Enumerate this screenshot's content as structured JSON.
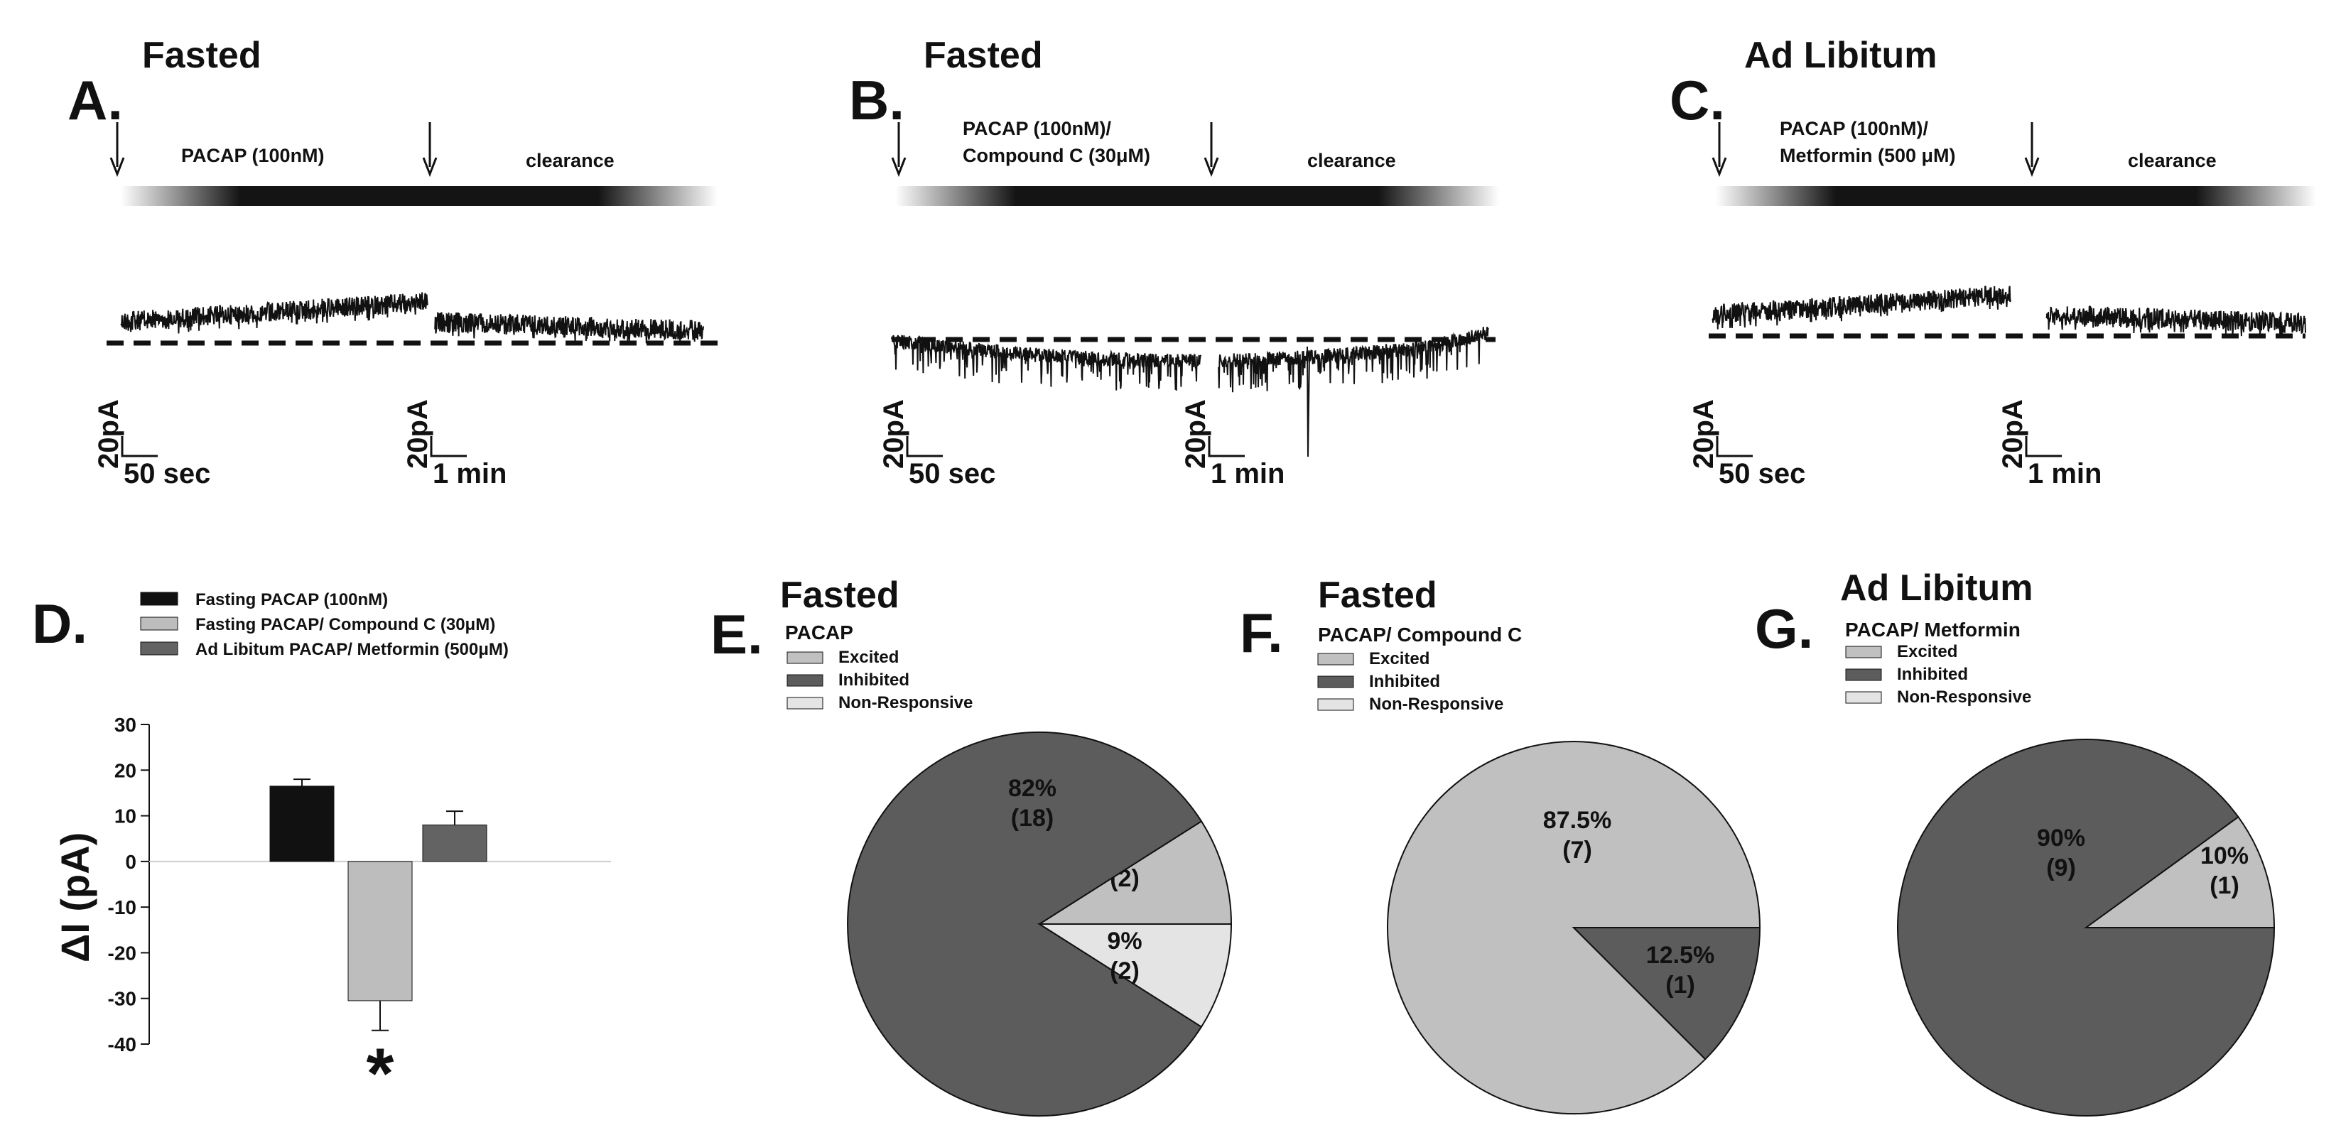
{
  "panels_top": [
    {
      "id": "A",
      "letter": "A.",
      "title": "Fasted",
      "drug_lines": [
        "PACAP (100nM)"
      ],
      "clearance": "clearance",
      "trace": {
        "baseline": "flat",
        "step_at_wash": true,
        "scale": {
          "left": {
            "y": "20pA",
            "x": "50 sec"
          },
          "right": {
            "y": "20pA",
            "x": "1 min"
          }
        }
      }
    },
    {
      "id": "B",
      "letter": "B.",
      "title": "Fasted",
      "drug_lines": [
        "PACAP (100nM)/",
        "Compound C (30μM)"
      ],
      "clearance": "clearance",
      "trace": {
        "baseline": "downward",
        "scale": {
          "left": {
            "y": "20pA",
            "x": "50 sec"
          },
          "right": {
            "y": "20pA",
            "x": "1 min"
          }
        }
      }
    },
    {
      "id": "C",
      "letter": "C.",
      "title": "Ad Libitum",
      "drug_lines": [
        "PACAP (100nM)/",
        "Metformin  (500 μM)"
      ],
      "clearance": "clearance",
      "trace": {
        "baseline": "flat",
        "step_at_wash": true,
        "scale": {
          "left": {
            "y": "20pA",
            "x": "50 sec"
          },
          "right": {
            "y": "20pA",
            "x": "1 min"
          }
        }
      }
    }
  ],
  "chart_data": [
    {
      "panel": "D",
      "type": "bar",
      "letter": "D.",
      "legend": [
        "Fasting PACAP (100nM)",
        "Fasting PACAP/ Compound C (30μM)",
        "Ad Libitum PACAP/ Metformin (500μM)"
      ],
      "ylabel": "ΔI (pA)",
      "ylim": [
        -40,
        30
      ],
      "yticks": [
        30,
        20,
        10,
        0,
        -10,
        -20,
        -30,
        -40
      ],
      "series": [
        {
          "name": "Fasting PACAP (100nM)",
          "value": 16.5,
          "error": 1.5,
          "color": "#111111"
        },
        {
          "name": "Fasting PACAP/ Compound C (30μM)",
          "value": -30.5,
          "error": 6.5,
          "color": "#bdbdbd",
          "significance": "*"
        },
        {
          "name": "Ad Libitum PACAP/ Metformin (500μM)",
          "value": 8,
          "error": 3,
          "color": "#636363"
        }
      ]
    },
    {
      "panel": "E",
      "type": "pie",
      "letter": "E.",
      "title": "Fasted",
      "subtitle": "PACAP",
      "legend": [
        "Excited",
        "Inhibited",
        "Non-Responsive"
      ],
      "slices": [
        {
          "category": "Excited",
          "percent": 9,
          "count": 2,
          "color": "#c0c0c0",
          "label": "9%",
          "count_label": "(2)"
        },
        {
          "category": "Inhibited",
          "percent": 82,
          "count": 18,
          "color": "#5c5c5c",
          "label": "82%",
          "count_label": "(18)"
        },
        {
          "category": "Non-Responsive",
          "percent": 9,
          "count": 2,
          "color": "#e4e4e4",
          "label": "9%",
          "count_label": "(2)"
        }
      ]
    },
    {
      "panel": "F",
      "type": "pie",
      "letter": "F.",
      "title": "Fasted",
      "subtitle": "PACAP/ Compound C",
      "legend": [
        "Excited",
        "Inhibited",
        "Non-Responsive"
      ],
      "slices": [
        {
          "category": "Excited",
          "percent": 87.5,
          "count": 7,
          "color": "#c0c0c0",
          "label": "87.5%",
          "count_label": "(7)"
        },
        {
          "category": "Inhibited",
          "percent": 12.5,
          "count": 1,
          "color": "#5c5c5c",
          "label": "12.5%",
          "count_label": "(1)"
        }
      ]
    },
    {
      "panel": "G",
      "type": "pie",
      "letter": "G.",
      "title": "Ad Libitum",
      "subtitle": "PACAP/ Metformin",
      "legend": [
        "Excited",
        "Inhibited",
        "Non-Responsive"
      ],
      "slices": [
        {
          "category": "Excited",
          "percent": 10,
          "count": 1,
          "color": "#c0c0c0",
          "label": "10%",
          "count_label": "(1)"
        },
        {
          "category": "Inhibited",
          "percent": 90,
          "count": 9,
          "color": "#5c5c5c",
          "label": "90%",
          "count_label": "(9)"
        }
      ]
    }
  ],
  "colors": {
    "excited": "#c0c0c0",
    "inhibited": "#5c5c5c",
    "nonresponsive": "#e4e4e4",
    "trace": "#111111"
  }
}
